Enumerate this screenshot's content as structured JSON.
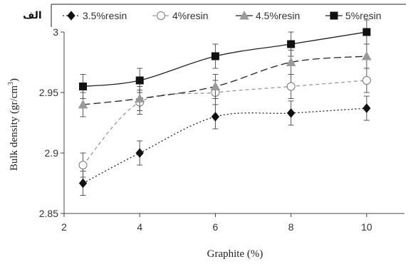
{
  "chart_data": {
    "type": "line",
    "panel_label": "الف",
    "xlabel": "Graphite (%)",
    "ylabel": "Bulk density (gr/cm",
    "ylabel_sup": "3",
    "ylabel_end": ")",
    "x": [
      2.5,
      4,
      6,
      8,
      10
    ],
    "xlim": [
      2,
      11
    ],
    "ylim": [
      2.85,
      3.0
    ],
    "x_ticks": [
      "2",
      "4",
      "6",
      "8",
      "10"
    ],
    "y_ticks": [
      "2.85",
      "2.9",
      "2.95",
      "3"
    ],
    "x_tick_values": [
      2,
      4,
      6,
      8,
      10
    ],
    "y_tick_values": [
      2.85,
      2.9,
      2.95,
      3.0
    ],
    "grid": false,
    "legend_position": "top",
    "series": [
      {
        "name": "3.5%resin",
        "marker": "diamond",
        "dash": "dotted",
        "color": "#111111",
        "values": [
          2.875,
          2.9,
          2.93,
          2.933,
          2.937
        ],
        "errors": [
          0.01,
          0.01,
          0.01,
          0.01,
          0.01
        ]
      },
      {
        "name": "4%resin",
        "marker": "circle-open",
        "dash": "short-dash",
        "color": "#888888",
        "values": [
          2.89,
          2.942,
          2.95,
          2.955,
          2.96
        ],
        "errors": [
          0.01,
          0.01,
          0.01,
          0.01,
          0.01
        ]
      },
      {
        "name": "4.5%resin",
        "marker": "triangle",
        "dash": "long-dash",
        "color": "#333333",
        "values": [
          2.94,
          2.945,
          2.955,
          2.975,
          2.98
        ],
        "errors": [
          0.01,
          0.01,
          0.01,
          0.01,
          0.01
        ]
      },
      {
        "name": "5%resin",
        "marker": "square",
        "dash": "solid",
        "color": "#111111",
        "values": [
          2.955,
          2.96,
          2.98,
          2.99,
          3.0
        ],
        "errors": [
          0.01,
          0.01,
          0.01,
          0.01,
          0.01
        ]
      }
    ]
  }
}
